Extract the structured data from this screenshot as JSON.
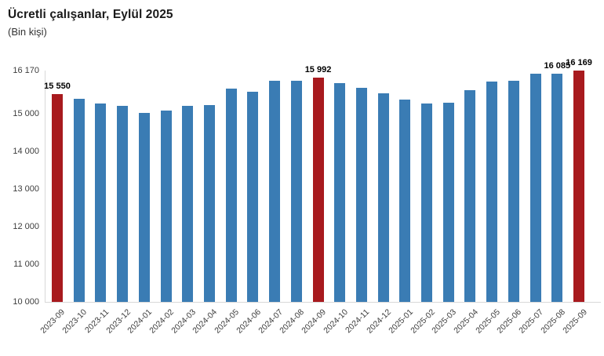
{
  "header": {
    "title": "Ücretli çalışanlar, Eylül 2025",
    "subtitle": "(Bin kişi)"
  },
  "colors": {
    "bar_default": "#3a7cb4",
    "bar_highlight": "#a81a1e",
    "axis_line": "#d9d9d9",
    "tick_text": "#3d3d3d",
    "value_label_text": "#000000",
    "title_text": "#1a1a1a"
  },
  "chart_data": {
    "type": "bar",
    "title": "Ücretli çalışanlar, Eylül 2025",
    "subtitle": "(Bin kişi)",
    "categories": [
      "2023-09",
      "2023-10",
      "2023-11",
      "2023-12",
      "2024-01",
      "2024-02",
      "2024-03",
      "2024-04",
      "2024-05",
      "2024-06",
      "2024-07",
      "2024-08",
      "2024-09",
      "2024-10",
      "2024-11",
      "2024-12",
      "2025-01",
      "2025-02",
      "2025-03",
      "2025-04",
      "2025-05",
      "2025-06",
      "2025-07",
      "2025-08",
      "2025-09"
    ],
    "values": [
      15550,
      15420,
      15290,
      15230,
      15050,
      15110,
      15220,
      15250,
      15690,
      15600,
      15900,
      15890,
      15992,
      15830,
      15720,
      15560,
      15390,
      15290,
      15310,
      15640,
      15880,
      15890,
      16096,
      16085,
      16169
    ],
    "highlighted_categories": [
      "2023-09",
      "2024-09",
      "2025-09"
    ],
    "data_labels": {
      "2023-09": "15 550",
      "2024-09": "15 992",
      "2025-08": "16 085",
      "2025-09": "16 169"
    },
    "y_ticks": [
      "16 170",
      "15 000",
      "14 000",
      "13 000",
      "12 000",
      "11 000",
      "10 000"
    ],
    "y_tick_values": [
      16170,
      15000,
      14000,
      13000,
      12000,
      11000,
      10000
    ],
    "ylim": [
      10000,
      16170
    ],
    "grid": false,
    "legend": false
  }
}
